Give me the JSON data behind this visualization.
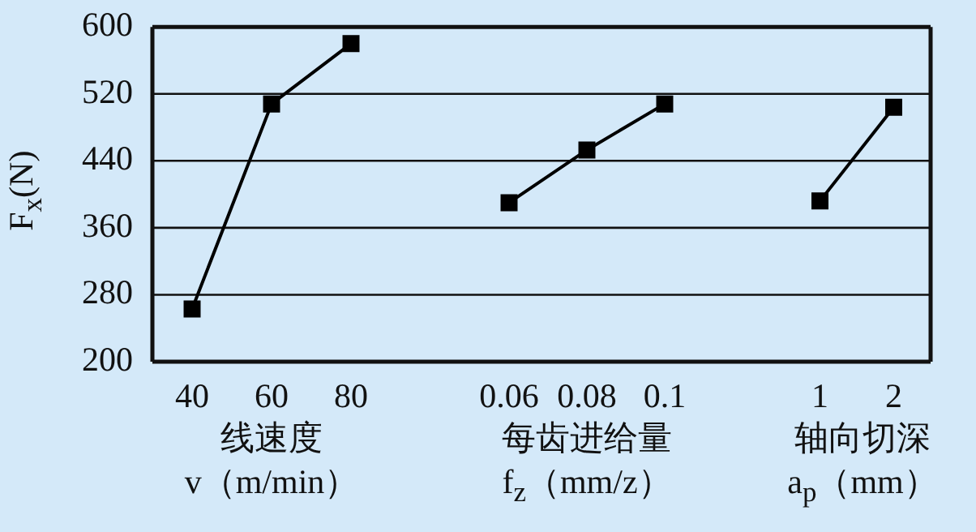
{
  "chart_data": [
    {
      "type": "line",
      "categories": [
        "40",
        "60",
        "80"
      ],
      "series": [
        {
          "color": "#000000",
          "values": [
            263,
            508,
            580
          ]
        }
      ],
      "xlabel": "线速度\nv（m/min）",
      "ylabel": "F$_{x}$(N)",
      "ylim": [
        200,
        600
      ],
      "yticks": [
        200,
        280,
        360,
        440,
        520,
        600
      ],
      "grid": "y",
      "marker": "square"
    },
    {
      "type": "line",
      "categories": [
        "0.06",
        "0.08",
        "0.1"
      ],
      "series": [
        {
          "color": "#000000",
          "values": [
            390,
            453,
            508
          ]
        }
      ],
      "xlabel": "每齿进给量\nf$_{z}$（mm/z）",
      "ylim": [
        200,
        600
      ],
      "yticks": [
        200,
        280,
        360,
        440,
        520,
        600
      ],
      "grid": "y",
      "marker": "square",
      "tick_labels": "x"
    },
    {
      "type": "line",
      "categories": [
        "1",
        "2"
      ],
      "series": [
        {
          "color": "#000000",
          "values": [
            392,
            504
          ]
        }
      ],
      "xlabel": "轴向切深\na$_{p}$（mm）",
      "ylim": [
        200,
        600
      ],
      "yticks": [
        200,
        280,
        360,
        440,
        520,
        600
      ],
      "grid": "y",
      "marker": "square",
      "tick_labels": "x"
    }
  ]
}
